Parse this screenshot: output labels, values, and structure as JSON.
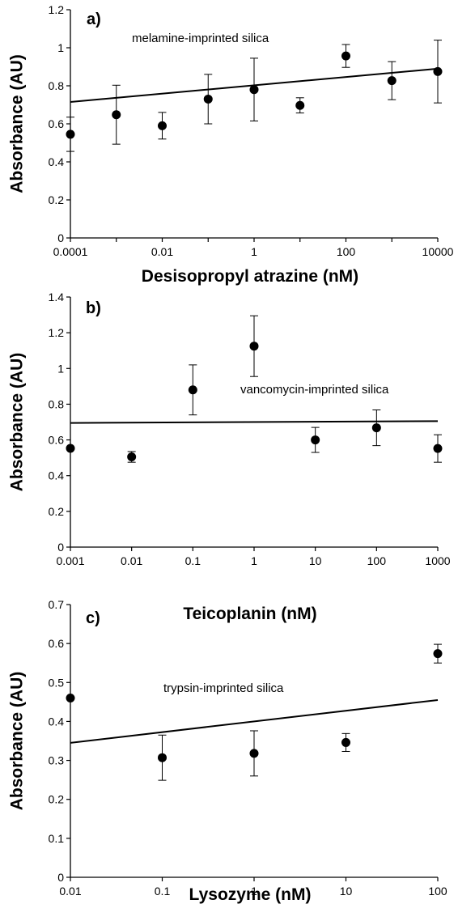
{
  "chart_data": [
    {
      "type": "scatter",
      "panel_label": "a)",
      "annotation": "melamine-imprinted silica",
      "xlabel": "Desisopropyl atrazine (nM)",
      "ylabel": "Absorbance (AU)",
      "x_scale": "log",
      "xlim": [
        0.0001,
        10000
      ],
      "ylim": [
        0,
        1.2
      ],
      "x_ticks": [
        0.0001,
        0.01,
        1,
        100,
        10000
      ],
      "x_tick_labels": [
        "0.0001",
        "0.01",
        "1",
        "100",
        "10000"
      ],
      "y_ticks": [
        0,
        0.2,
        0.4,
        0.6,
        0.8,
        1,
        1.2
      ],
      "y_tick_labels": [
        "0",
        "0.2",
        "0.4",
        "0.6",
        "0.8",
        "1",
        "1.2"
      ],
      "points": [
        {
          "x": 0.0001,
          "y": 0.545,
          "err": 0.09
        },
        {
          "x": 0.001,
          "y": 0.648,
          "err": 0.155
        },
        {
          "x": 0.01,
          "y": 0.59,
          "err": 0.07
        },
        {
          "x": 0.1,
          "y": 0.73,
          "err": 0.13
        },
        {
          "x": 1,
          "y": 0.78,
          "err": 0.165
        },
        {
          "x": 10,
          "y": 0.697,
          "err": 0.04
        },
        {
          "x": 100,
          "y": 0.957,
          "err": 0.06
        },
        {
          "x": 1000,
          "y": 0.827,
          "err": 0.1
        },
        {
          "x": 10000,
          "y": 0.875,
          "err": 0.165
        }
      ],
      "fit_line": {
        "x": [
          0.0001,
          10000
        ],
        "y": [
          0.715,
          0.89
        ]
      }
    },
    {
      "type": "scatter",
      "panel_label": "b)",
      "annotation": "vancomycin-imprinted silica",
      "xlabel": "Teicoplanin (nM)",
      "ylabel": "Absorbance (AU)",
      "x_scale": "log",
      "xlim": [
        0.001,
        1000
      ],
      "ylim": [
        0,
        1.4
      ],
      "x_ticks": [
        0.001,
        0.01,
        0.1,
        1,
        10,
        100,
        1000
      ],
      "x_tick_labels": [
        "0.001",
        "0.01",
        "0.1",
        "1",
        "10",
        "100",
        "1000"
      ],
      "y_ticks": [
        0,
        0.2,
        0.4,
        0.6,
        0.8,
        1,
        1.2,
        1.4
      ],
      "y_tick_labels": [
        "0",
        "0.2",
        "0.4",
        "0.6",
        "0.8",
        "1",
        "1.2",
        "1.4"
      ],
      "points": [
        {
          "x": 0.001,
          "y": 0.553,
          "err": 0.0
        },
        {
          "x": 0.01,
          "y": 0.505,
          "err": 0.03
        },
        {
          "x": 0.1,
          "y": 0.88,
          "err": 0.14
        },
        {
          "x": 1,
          "y": 1.125,
          "err": 0.17
        },
        {
          "x": 10,
          "y": 0.6,
          "err": 0.07
        },
        {
          "x": 100,
          "y": 0.668,
          "err": 0.1
        },
        {
          "x": 1000,
          "y": 0.552,
          "err": 0.077
        }
      ],
      "fit_line": {
        "x": [
          0.001,
          1000
        ],
        "y": [
          0.695,
          0.705
        ]
      }
    },
    {
      "type": "scatter",
      "panel_label": "c)",
      "annotation": "trypsin-imprinted silica",
      "xlabel": "Lysozyme (nM)",
      "ylabel": "Absorbance (AU)",
      "x_scale": "log",
      "xlim": [
        0.01,
        100
      ],
      "ylim": [
        0,
        0.7
      ],
      "x_ticks": [
        0.01,
        0.1,
        1,
        10,
        100
      ],
      "x_tick_labels": [
        "0.01",
        "0.1",
        "1",
        "10",
        "100"
      ],
      "y_ticks": [
        0,
        0.1,
        0.2,
        0.3,
        0.4,
        0.5,
        0.6,
        0.7
      ],
      "y_tick_labels": [
        "0",
        "0.1",
        "0.2",
        "0.3",
        "0.4",
        "0.5",
        "0.6",
        "0.7"
      ],
      "points": [
        {
          "x": 0.01,
          "y": 0.46,
          "err": 0.0
        },
        {
          "x": 0.1,
          "y": 0.307,
          "err": 0.058
        },
        {
          "x": 1,
          "y": 0.318,
          "err": 0.058
        },
        {
          "x": 10,
          "y": 0.346,
          "err": 0.023
        },
        {
          "x": 100,
          "y": 0.574,
          "err": 0.024
        }
      ],
      "fit_line": {
        "x": [
          0.01,
          100
        ],
        "y": [
          0.345,
          0.455
        ]
      }
    }
  ]
}
